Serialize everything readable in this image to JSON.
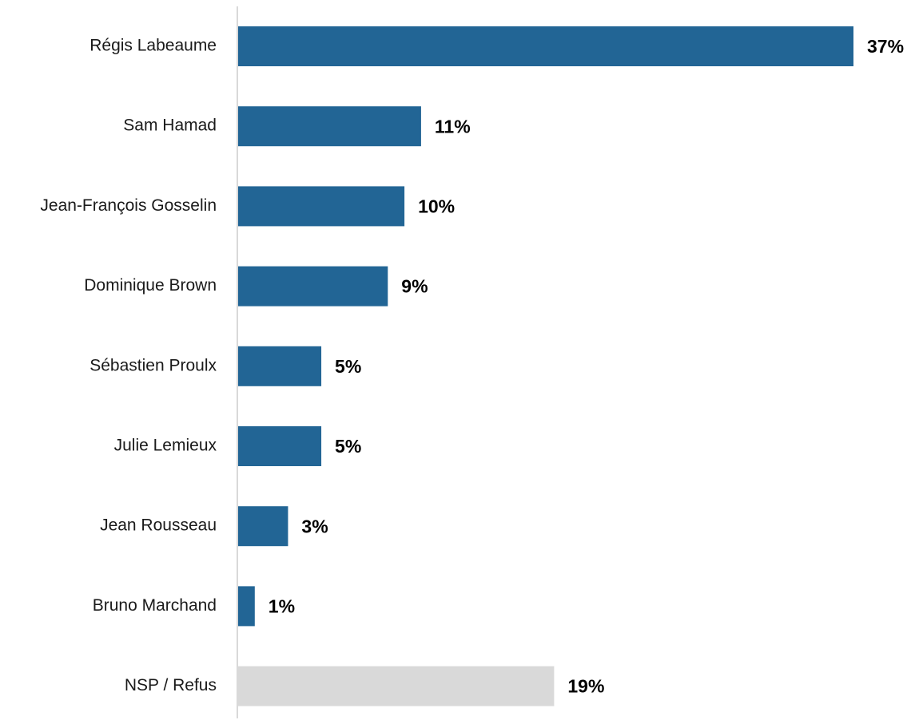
{
  "chart_data": {
    "type": "bar",
    "orientation": "horizontal",
    "categories": [
      "Régis Labeaume",
      "Sam Hamad",
      "Jean-François Gosselin",
      "Dominique Brown",
      "Sébastien Proulx",
      "Julie Lemieux",
      "Jean Rousseau",
      "Bruno Marchand",
      "NSP / Refus"
    ],
    "values": [
      37,
      11,
      10,
      9,
      5,
      5,
      3,
      1,
      19
    ],
    "value_labels": [
      "37%",
      "11%",
      "10%",
      "9%",
      "5%",
      "5%",
      "3%",
      "1%",
      "19%"
    ],
    "unit": "%",
    "xlim": [
      0,
      37
    ],
    "grid": false,
    "legend": "none",
    "colors": {
      "bar": "#226595",
      "last_bar": "#d9d9d9",
      "axis": "#d9d9d9"
    }
  }
}
